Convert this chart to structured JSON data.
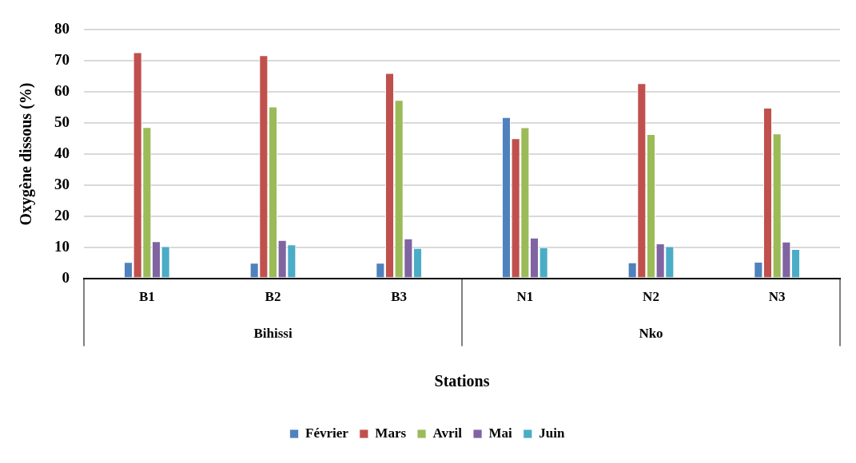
{
  "chart_data": {
    "type": "bar",
    "xlabel": "Stations",
    "ylabel": "Oxygène dissous (%)",
    "categories": [
      "B1",
      "B2",
      "B3",
      "N1",
      "N2",
      "N3"
    ],
    "series": [
      {
        "name": "Février",
        "color": "#4f81bd",
        "values": [
          5.2,
          5.0,
          5.0,
          51.9,
          5.1,
          5.3
        ]
      },
      {
        "name": "Mars",
        "color": "#c0504d",
        "values": [
          72.8,
          71.8,
          66.1,
          45.1,
          62.8,
          54.9
        ]
      },
      {
        "name": "Avril",
        "color": "#9bbb59",
        "values": [
          48.7,
          55.3,
          57.4,
          48.6,
          46.4,
          46.6
        ]
      },
      {
        "name": "Mai",
        "color": "#8064a2",
        "values": [
          11.9,
          12.3,
          12.8,
          13.1,
          11.2,
          11.8
        ]
      },
      {
        "name": "Juin",
        "color": "#4bacc6",
        "values": [
          10.3,
          10.9,
          9.7,
          10.0,
          10.3,
          9.4
        ]
      }
    ],
    "annotations": [
      "Bihissi",
      "Nko"
    ],
    "ylim": [
      0,
      80
    ],
    "yticks": [
      0,
      10,
      20,
      30,
      40,
      50,
      60,
      70,
      80
    ],
    "grid": "y",
    "legend": "bottom"
  }
}
